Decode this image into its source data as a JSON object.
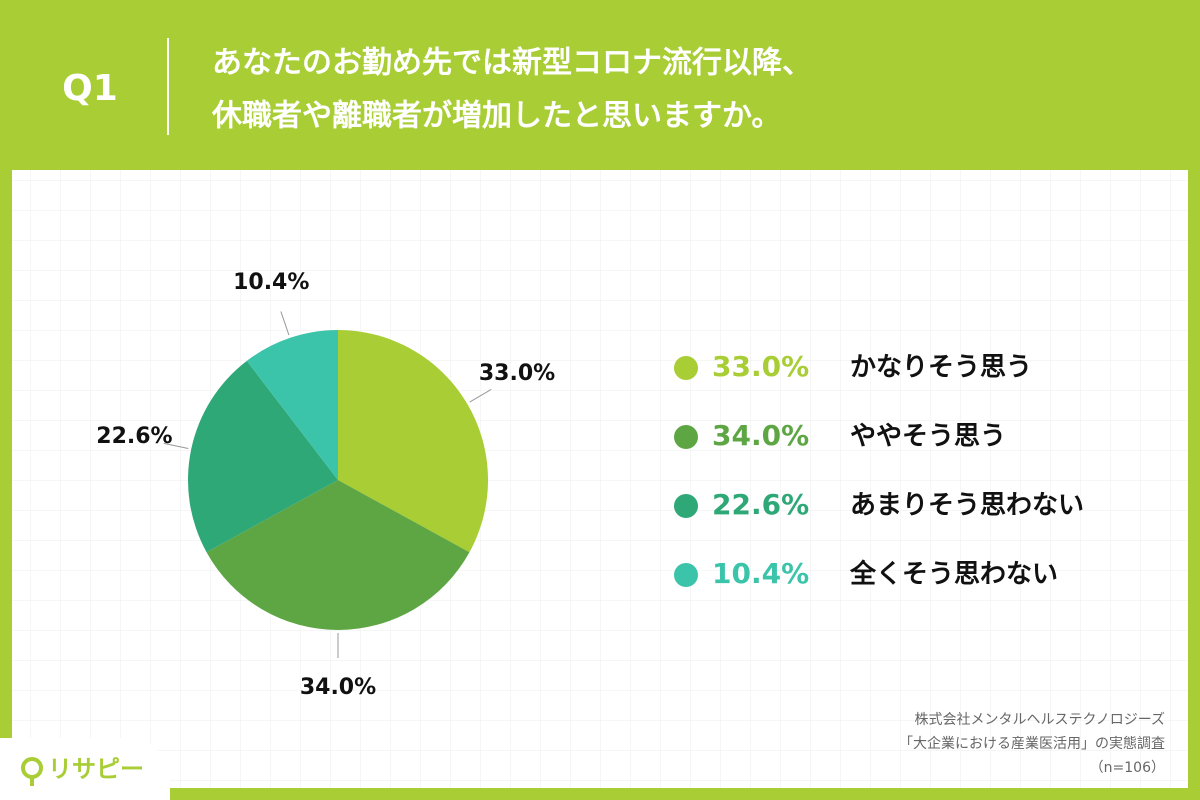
{
  "chart_data": {
    "type": "pie",
    "question": "Q1",
    "title": [
      "あなたのお勤め先では新型コロナ流行以降、",
      "休職者や離職者が増加したと思いますか。"
    ],
    "categories": [
      "かなりそう思う",
      "ややそう思う",
      "あまりそう思わない",
      "全くそう思わない"
    ],
    "values": [
      33.0,
      34.0,
      22.6,
      10.4
    ],
    "value_labels": [
      "33.0%",
      "34.0%",
      "22.6%",
      "10.4%"
    ],
    "colors": [
      "#a8cd35",
      "#5ea644",
      "#2fa877",
      "#3cc4aa"
    ],
    "legend": "right",
    "source": [
      "株式会社メンタルヘルステクノロジーズ",
      "「大企業における産業医活用」の実態調査",
      "（n=106）"
    ]
  },
  "logo": "リサピー"
}
